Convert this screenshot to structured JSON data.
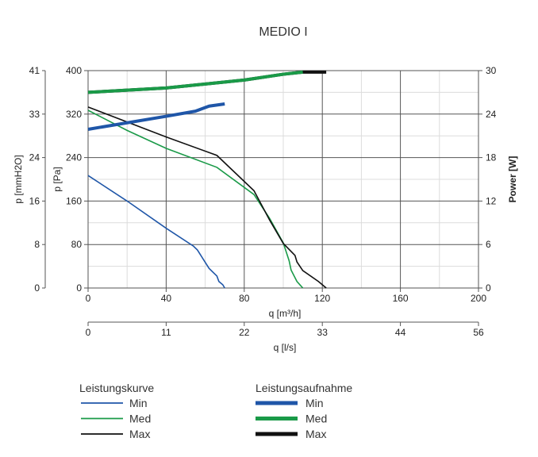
{
  "chart_data": {
    "type": "line",
    "title": "MEDIO I",
    "x_axis": {
      "label": "q [m³/h]",
      "range": [
        0,
        200
      ],
      "ticks": [
        0,
        40,
        80,
        120,
        160,
        200
      ]
    },
    "x2_axis": {
      "label": "q [l/s]",
      "ticks": [
        "0",
        "11",
        "22",
        "33",
        "44",
        "56"
      ]
    },
    "y_axis": {
      "label": "p [Pa]",
      "range": [
        0,
        400
      ],
      "ticks": [
        0,
        80,
        160,
        240,
        320,
        400
      ]
    },
    "y_axis_left2": {
      "label": "p [mmH2O]",
      "ticks": [
        "0",
        "8",
        "16",
        "24",
        "33",
        "41"
      ]
    },
    "y_axis_right": {
      "label": "Power [W]",
      "range": [
        0,
        30
      ],
      "ticks": [
        0,
        6,
        12,
        18,
        24,
        30
      ]
    },
    "grid": true,
    "legend_groups": [
      {
        "title": "Leistungskurve",
        "entries": [
          "Min",
          "Med",
          "Max"
        ]
      },
      {
        "title": "Leistungsaufnahme",
        "entries": [
          "Min",
          "Med",
          "Max"
        ]
      }
    ],
    "colors": {
      "Min": "#1f56a8",
      "Med": "#1a9a48",
      "Max": "#111111"
    },
    "pressure_series": [
      {
        "name": "Min",
        "points": [
          [
            0,
            207
          ],
          [
            20,
            160
          ],
          [
            40,
            110
          ],
          [
            54,
            77
          ],
          [
            56,
            70
          ],
          [
            62,
            36
          ],
          [
            66,
            22
          ],
          [
            67,
            12
          ],
          [
            69,
            6
          ],
          [
            70,
            0
          ]
        ]
      },
      {
        "name": "Med",
        "points": [
          [
            0,
            327
          ],
          [
            20,
            290
          ],
          [
            40,
            257
          ],
          [
            66,
            222
          ],
          [
            85,
            172
          ],
          [
            93,
            128
          ],
          [
            100,
            83
          ],
          [
            103,
            50
          ],
          [
            104,
            33
          ],
          [
            107,
            12
          ],
          [
            110,
            0
          ]
        ]
      },
      {
        "name": "Max",
        "points": [
          [
            0,
            333
          ],
          [
            40,
            278
          ],
          [
            66,
            244
          ],
          [
            85,
            179
          ],
          [
            93,
            125
          ],
          [
            100,
            82
          ],
          [
            106,
            60
          ],
          [
            107,
            48
          ],
          [
            110,
            32
          ],
          [
            118,
            12
          ],
          [
            122,
            0
          ]
        ]
      }
    ],
    "power_series": [
      {
        "name": "Min",
        "points": [
          [
            0,
            21.9
          ],
          [
            40,
            23.7
          ],
          [
            55,
            24.4
          ],
          [
            62,
            25.1
          ],
          [
            70,
            25.4
          ]
        ]
      },
      {
        "name": "Max",
        "points": [
          [
            0,
            27.0
          ],
          [
            40,
            27.6
          ],
          [
            80,
            28.7
          ],
          [
            100,
            29.5
          ],
          [
            110,
            29.8
          ],
          [
            122,
            29.8
          ]
        ]
      },
      {
        "name": "Med",
        "points": [
          [
            0,
            27.0
          ],
          [
            40,
            27.6
          ],
          [
            80,
            28.7
          ],
          [
            100,
            29.5
          ],
          [
            110,
            29.8
          ]
        ]
      }
    ]
  }
}
